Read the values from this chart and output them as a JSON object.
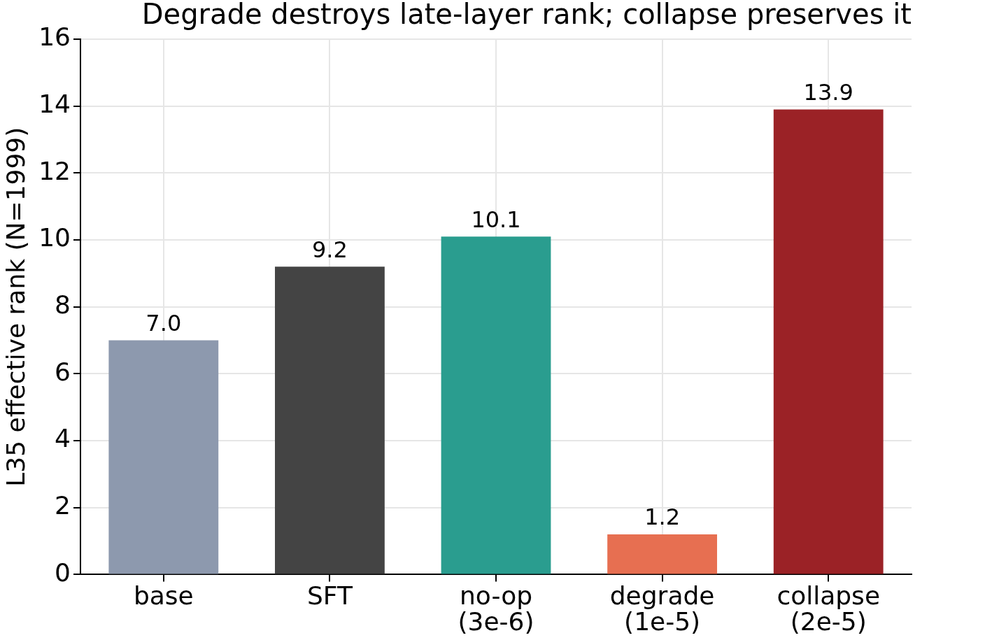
{
  "chart_data": {
    "type": "bar",
    "title": "Degrade destroys late-layer rank; collapse preserves it",
    "ylabel": "L35 effective rank (N=1999)",
    "categories": [
      "base",
      "SFT",
      "no-op\n(3e-6)",
      "degrade\n(1e-5)",
      "collapse\n(2e-5)"
    ],
    "values": [
      7.0,
      9.2,
      10.1,
      1.2,
      13.9
    ],
    "colors": [
      "#8d99ae",
      "#444444",
      "#2a9d8f",
      "#e76f51",
      "#9b2226"
    ],
    "ylim": [
      0,
      16
    ],
    "yticks": [
      0,
      2,
      4,
      6,
      8,
      10,
      12,
      14,
      16
    ],
    "value_labels": [
      "7.0",
      "9.2",
      "10.1",
      "1.2",
      "13.9"
    ],
    "grid": true,
    "legend": false
  }
}
